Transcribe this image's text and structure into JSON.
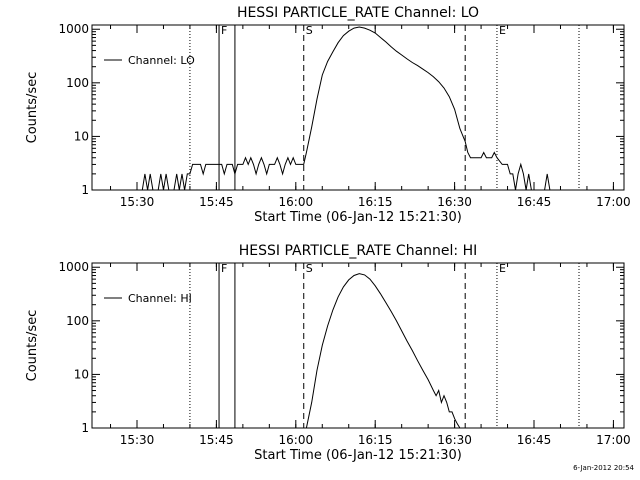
{
  "timestamp": "6-Jan-2012 20:54",
  "chart_data": [
    {
      "type": "line",
      "title": "HESSI PARTICLE_RATE Channel: LO",
      "xlabel": "Start Time (06-Jan-12 15:21:30)",
      "ylabel": "Counts/sec",
      "y_scale": "log",
      "ylim": [
        1,
        1200
      ],
      "xlim": [
        "15:21:30",
        "17:02:00"
      ],
      "x_ticks": [
        "15:30",
        "15:45",
        "16:00",
        "16:15",
        "16:30",
        "16:45",
        "17:00"
      ],
      "y_ticks": [
        1,
        10,
        100,
        1000
      ],
      "y_tick_labels": [
        "1",
        "10",
        "100",
        "1000"
      ],
      "legend": {
        "label": "Channel: LO",
        "placement": "top-left"
      },
      "markers": [
        {
          "time": "15:40:00",
          "style": "dotted",
          "label": ""
        },
        {
          "time": "15:45:30",
          "style": "solid",
          "label": "F"
        },
        {
          "time": "15:48:30",
          "style": "solid",
          "label": ""
        },
        {
          "time": "16:01:30",
          "style": "dashed",
          "label": "S"
        },
        {
          "time": "16:32:00",
          "style": "dashed",
          "label": ""
        },
        {
          "time": "16:38:00",
          "style": "dotted",
          "label": "E"
        },
        {
          "time": "16:53:30",
          "style": "dotted",
          "label": ""
        }
      ],
      "series": [
        {
          "name": "Channel: LO",
          "points": [
            [
              "15:31:00",
              1
            ],
            [
              "15:31:30",
              2
            ],
            [
              "15:32:00",
              1
            ],
            [
              "15:32:30",
              2
            ],
            [
              "15:33:00",
              1
            ],
            [
              "15:34:00",
              1
            ],
            [
              "15:34:30",
              2
            ],
            [
              "15:35:00",
              1
            ],
            [
              "15:35:30",
              2
            ],
            [
              "15:36:00",
              1
            ],
            [
              "15:37:00",
              1
            ],
            [
              "15:37:30",
              2
            ],
            [
              "15:38:00",
              1
            ],
            [
              "15:38:30",
              2
            ],
            [
              "15:39:00",
              1
            ],
            [
              "15:39:30",
              2
            ],
            [
              "15:40:00",
              2
            ],
            [
              "15:40:30",
              3
            ],
            [
              "15:42:00",
              3
            ],
            [
              "15:42:30",
              2
            ],
            [
              "15:43:00",
              3
            ],
            [
              "15:46:00",
              3
            ],
            [
              "15:46:30",
              2
            ],
            [
              "15:47:00",
              3
            ],
            [
              "15:48:00",
              3
            ],
            [
              "15:48:30",
              2
            ],
            [
              "15:49:00",
              3
            ],
            [
              "15:50:00",
              3
            ],
            [
              "15:50:30",
              4
            ],
            [
              "15:51:00",
              3
            ],
            [
              "15:51:30",
              4
            ],
            [
              "15:52:00",
              3
            ],
            [
              "15:52:30",
              2
            ],
            [
              "15:53:00",
              3
            ],
            [
              "15:53:30",
              4
            ],
            [
              "15:54:00",
              3
            ],
            [
              "15:54:30",
              2
            ],
            [
              "15:55:00",
              3
            ],
            [
              "15:56:00",
              3
            ],
            [
              "15:56:30",
              4
            ],
            [
              "15:57:00",
              3
            ],
            [
              "15:57:30",
              2
            ],
            [
              "15:58:00",
              3
            ],
            [
              "15:58:30",
              4
            ],
            [
              "15:59:00",
              3
            ],
            [
              "15:59:30",
              4
            ],
            [
              "16:00:00",
              3
            ],
            [
              "16:01:30",
              3
            ],
            [
              "16:02:00",
              5
            ],
            [
              "16:03:00",
              15
            ],
            [
              "16:04:00",
              50
            ],
            [
              "16:05:00",
              140
            ],
            [
              "16:06:00",
              250
            ],
            [
              "16:07:00",
              380
            ],
            [
              "16:08:00",
              560
            ],
            [
              "16:09:00",
              760
            ],
            [
              "16:10:00",
              920
            ],
            [
              "16:11:00",
              1050
            ],
            [
              "16:12:00",
              1100
            ],
            [
              "16:13:00",
              1050
            ],
            [
              "16:14:00",
              960
            ],
            [
              "16:15:00",
              850
            ],
            [
              "16:16:00",
              700
            ],
            [
              "16:17:00",
              580
            ],
            [
              "16:18:00",
              470
            ],
            [
              "16:19:00",
              390
            ],
            [
              "16:20:00",
              330
            ],
            [
              "16:21:00",
              280
            ],
            [
              "16:22:00",
              240
            ],
            [
              "16:23:00",
              210
            ],
            [
              "16:24:00",
              180
            ],
            [
              "16:25:00",
              155
            ],
            [
              "16:26:00",
              130
            ],
            [
              "16:27:00",
              105
            ],
            [
              "16:28:00",
              80
            ],
            [
              "16:29:00",
              55
            ],
            [
              "16:30:00",
              32
            ],
            [
              "16:31:00",
              14
            ],
            [
              "16:32:00",
              8
            ],
            [
              "16:32:30",
              5
            ],
            [
              "16:33:00",
              4
            ],
            [
              "16:35:00",
              4
            ],
            [
              "16:35:30",
              5
            ],
            [
              "16:36:00",
              4
            ],
            [
              "16:37:00",
              4
            ],
            [
              "16:37:30",
              5
            ],
            [
              "16:38:00",
              4
            ],
            [
              "16:39:00",
              3
            ],
            [
              "16:40:00",
              3
            ],
            [
              "16:40:30",
              2
            ],
            [
              "16:41:00",
              2
            ],
            [
              "16:41:30",
              1
            ],
            [
              "16:42:00",
              2
            ],
            [
              "16:42:30",
              3
            ],
            [
              "16:43:00",
              2
            ],
            [
              "16:43:30",
              1
            ],
            [
              "16:44:00",
              2
            ],
            [
              "16:44:30",
              1
            ],
            [
              "16:47:00",
              1
            ],
            [
              "16:47:30",
              2
            ],
            [
              "16:48:00",
              1
            ]
          ]
        }
      ]
    },
    {
      "type": "line",
      "title": "HESSI PARTICLE_RATE Channel: HI",
      "xlabel": "Start Time (06-Jan-12 15:21:30)",
      "ylabel": "Counts/sec",
      "y_scale": "log",
      "ylim": [
        1,
        1200
      ],
      "xlim": [
        "15:21:30",
        "17:02:00"
      ],
      "x_ticks": [
        "15:30",
        "15:45",
        "16:00",
        "16:15",
        "16:30",
        "16:45",
        "17:00"
      ],
      "y_ticks": [
        1,
        10,
        100,
        1000
      ],
      "y_tick_labels": [
        "1",
        "10",
        "100",
        "1000"
      ],
      "legend": {
        "label": "Channel: HI",
        "placement": "top-left"
      },
      "markers": [
        {
          "time": "15:40:00",
          "style": "dotted",
          "label": ""
        },
        {
          "time": "15:45:30",
          "style": "solid",
          "label": "F"
        },
        {
          "time": "15:48:30",
          "style": "solid",
          "label": ""
        },
        {
          "time": "16:01:30",
          "style": "dashed",
          "label": "S"
        },
        {
          "time": "16:32:00",
          "style": "dashed",
          "label": ""
        },
        {
          "time": "16:38:00",
          "style": "dotted",
          "label": "E"
        },
        {
          "time": "16:53:30",
          "style": "dotted",
          "label": ""
        }
      ],
      "series": [
        {
          "name": "Channel: HI",
          "points": [
            [
              "16:02:00",
              1
            ],
            [
              "16:03:00",
              3
            ],
            [
              "16:04:00",
              12
            ],
            [
              "16:05:00",
              35
            ],
            [
              "16:06:00",
              80
            ],
            [
              "16:07:00",
              160
            ],
            [
              "16:08:00",
              280
            ],
            [
              "16:09:00",
              430
            ],
            [
              "16:10:00",
              580
            ],
            [
              "16:11:00",
              700
            ],
            [
              "16:12:00",
              760
            ],
            [
              "16:13:00",
              720
            ],
            [
              "16:14:00",
              600
            ],
            [
              "16:15:00",
              450
            ],
            [
              "16:16:00",
              320
            ],
            [
              "16:17:00",
              220
            ],
            [
              "16:18:00",
              150
            ],
            [
              "16:19:00",
              100
            ],
            [
              "16:20:00",
              65
            ],
            [
              "16:21:00",
              42
            ],
            [
              "16:22:00",
              28
            ],
            [
              "16:23:00",
              18
            ],
            [
              "16:24:00",
              12
            ],
            [
              "16:25:00",
              8
            ],
            [
              "16:26:00",
              5
            ],
            [
              "16:26:30",
              4
            ],
            [
              "16:27:00",
              5
            ],
            [
              "16:27:30",
              3
            ],
            [
              "16:28:00",
              4
            ],
            [
              "16:28:30",
              3
            ],
            [
              "16:29:00",
              2
            ],
            [
              "16:29:30",
              2
            ],
            [
              "16:30:00",
              1.5
            ],
            [
              "16:30:30",
              1.2
            ],
            [
              "16:31:00",
              1
            ]
          ]
        }
      ]
    }
  ]
}
